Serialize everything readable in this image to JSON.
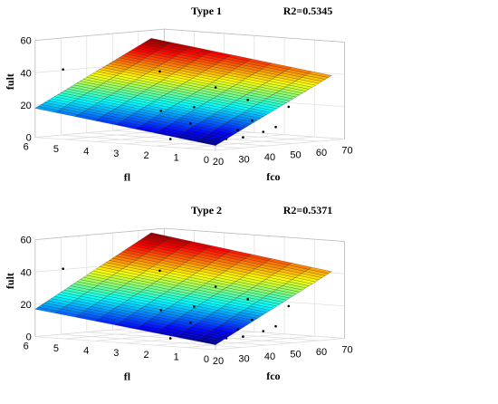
{
  "chart_data": [
    {
      "type": "surface",
      "title": "Type 1",
      "annotation": "R2=0.5345",
      "xlabel": "fco",
      "ylabel": "fl",
      "zlabel": "fult",
      "xlim": [
        20,
        70
      ],
      "ylim": [
        0,
        6
      ],
      "zlim": [
        0,
        60
      ],
      "xticks": [
        20,
        30,
        40,
        50,
        60,
        70
      ],
      "yticks": [
        0,
        1,
        2,
        3,
        4,
        5,
        6
      ],
      "zticks": [
        0,
        20,
        40,
        60
      ],
      "colormap": "jet",
      "grid": true,
      "surface": {
        "fco": [
          20,
          65
        ],
        "fl": [
          0,
          6
        ],
        "fult_corners": [
          {
            "fco": 20,
            "fl": 0,
            "fult": 3
          },
          {
            "fco": 65,
            "fl": 0,
            "fult": 40
          },
          {
            "fco": 20,
            "fl": 6,
            "fult": 18
          },
          {
            "fco": 65,
            "fl": 6,
            "fult": 55
          }
        ]
      },
      "points": [
        {
          "fco": 25,
          "fl": 5.5,
          "fult": 42
        },
        {
          "fco": 22,
          "fl": 1,
          "fult": 15
        },
        {
          "fco": 20,
          "fl": 1.5,
          "fult": 5
        },
        {
          "fco": 30,
          "fl": 0.5,
          "fult": 5
        },
        {
          "fco": 33,
          "fl": 0.2,
          "fult": 6
        },
        {
          "fco": 40,
          "fl": 0.5,
          "fult": 15
        },
        {
          "fco": 45,
          "fl": 4,
          "fult": 40
        },
        {
          "fco": 50,
          "fl": 1.5,
          "fult": 25
        },
        {
          "fco": 55,
          "fl": 3,
          "fult": 30
        },
        {
          "fco": 60,
          "fl": 1,
          "fult": 20
        },
        {
          "fco": 35,
          "fl": 2,
          "fult": 22
        },
        {
          "fco": 38,
          "fl": 0.8,
          "fult": 9
        },
        {
          "fco": 42,
          "fl": 0.3,
          "fult": 8
        },
        {
          "fco": 28,
          "fl": 2.5,
          "fult": 20
        },
        {
          "fco": 48,
          "fl": 0.4,
          "fult": 10
        }
      ]
    },
    {
      "type": "surface",
      "title": "Type 2",
      "annotation": "R2=0.5371",
      "xlabel": "fco",
      "ylabel": "fl",
      "zlabel": "fult",
      "xlim": [
        20,
        70
      ],
      "ylim": [
        0,
        6
      ],
      "zlim": [
        0,
        60
      ],
      "xticks": [
        20,
        30,
        40,
        50,
        60,
        70
      ],
      "yticks": [
        0,
        1,
        2,
        3,
        4,
        5,
        6
      ],
      "zticks": [
        0,
        20,
        40,
        60
      ],
      "colormap": "jet",
      "grid": true,
      "surface": {
        "fco": [
          20,
          65
        ],
        "fl": [
          0,
          6
        ],
        "fult_corners": [
          {
            "fco": 20,
            "fl": 0,
            "fult": 3
          },
          {
            "fco": 65,
            "fl": 0,
            "fult": 42
          },
          {
            "fco": 20,
            "fl": 6,
            "fult": 17
          },
          {
            "fco": 65,
            "fl": 6,
            "fult": 58
          }
        ]
      },
      "points": [
        {
          "fco": 25,
          "fl": 5.5,
          "fult": 42
        },
        {
          "fco": 22,
          "fl": 1,
          "fult": 15
        },
        {
          "fco": 20,
          "fl": 1.5,
          "fult": 5
        },
        {
          "fco": 30,
          "fl": 0.5,
          "fult": 5
        },
        {
          "fco": 33,
          "fl": 0.2,
          "fult": 6
        },
        {
          "fco": 40,
          "fl": 0.5,
          "fult": 15
        },
        {
          "fco": 45,
          "fl": 4,
          "fult": 40
        },
        {
          "fco": 50,
          "fl": 1.5,
          "fult": 25
        },
        {
          "fco": 55,
          "fl": 3,
          "fult": 30
        },
        {
          "fco": 60,
          "fl": 1,
          "fult": 20
        },
        {
          "fco": 35,
          "fl": 2,
          "fult": 22
        },
        {
          "fco": 38,
          "fl": 0.8,
          "fult": 9
        },
        {
          "fco": 42,
          "fl": 0.3,
          "fult": 8
        },
        {
          "fco": 28,
          "fl": 2.5,
          "fult": 20
        },
        {
          "fco": 48,
          "fl": 0.4,
          "fult": 10
        }
      ]
    }
  ]
}
